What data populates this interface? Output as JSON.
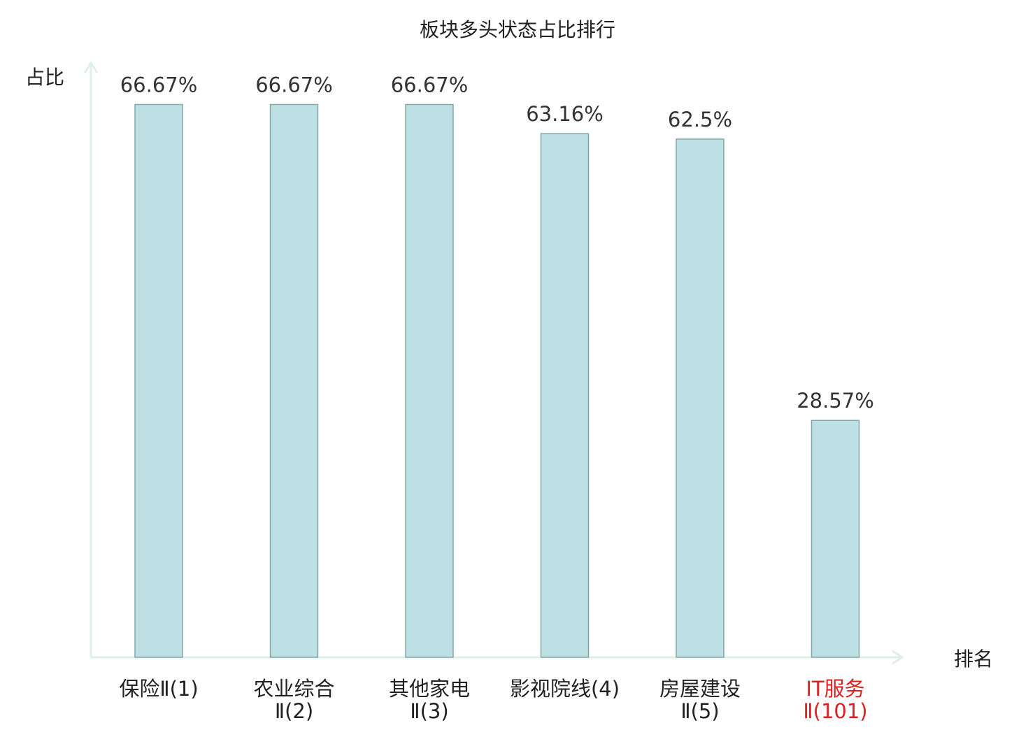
{
  "chart_data": {
    "type": "bar",
    "title": "板块多头状态占比排行",
    "ylabel": "占比",
    "xlabel": "排名",
    "ylim": [
      0,
      70
    ],
    "grid": false,
    "categories": [
      [
        "保险Ⅱ(1)"
      ],
      [
        "农业综合",
        "Ⅱ(2)"
      ],
      [
        "其他家电",
        "Ⅱ(3)"
      ],
      [
        "影视院线(4)"
      ],
      [
        "房屋建设",
        "Ⅱ(5)"
      ],
      [
        "IT服务",
        "Ⅱ(101)"
      ]
    ],
    "values": [
      66.67,
      66.67,
      66.67,
      63.16,
      62.5,
      28.57
    ],
    "value_labels": [
      "66.67%",
      "66.67%",
      "66.67%",
      "63.16%",
      "62.5%",
      "28.57%"
    ],
    "highlight_index": 5
  },
  "colors": {
    "bar_fill": "#bce0e3",
    "bar_stroke": "#86a5a8",
    "axis": "#dff0ec",
    "text": "#222222",
    "value_text": "#333333",
    "highlight": "#e02020"
  }
}
